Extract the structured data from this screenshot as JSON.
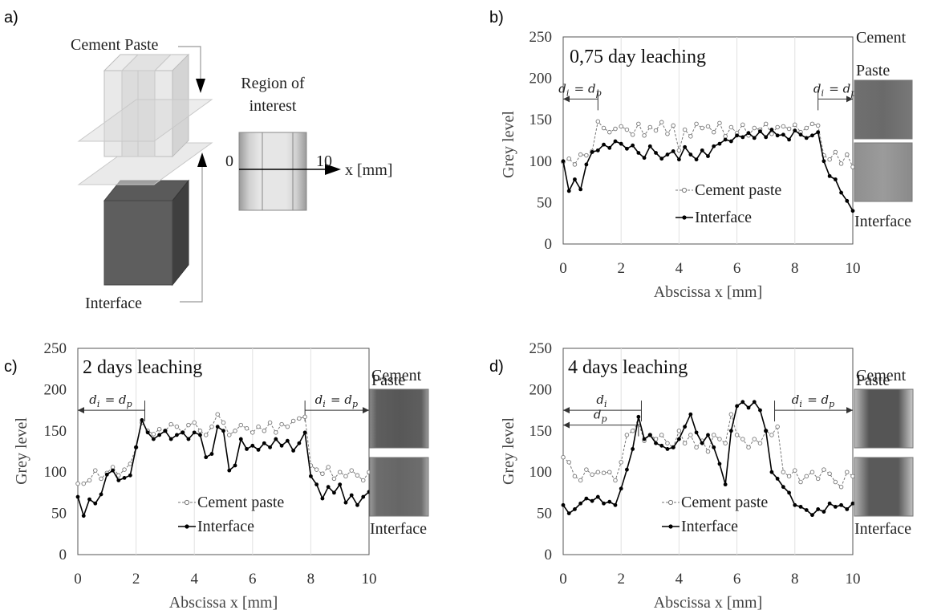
{
  "panel_a": {
    "label": "a)",
    "cement_label": "Cement Paste",
    "interface_label": "Interface",
    "roi_title_1": "Region of",
    "roi_title_2": "interest",
    "roi_zero": "0",
    "roi_ten": "10",
    "roi_axis": "x [mm]"
  },
  "chart_data": [
    {
      "type": "line",
      "panel_label": "b)",
      "title": "0,75 day leaching",
      "xlabel": "Abscissa x [mm]",
      "ylabel": "Grey level",
      "xlim": [
        0,
        10
      ],
      "ylim": [
        0,
        250
      ],
      "xticks": [
        0,
        2,
        4,
        6,
        8,
        10
      ],
      "yticks": [
        0,
        50,
        100,
        150,
        200,
        250
      ],
      "grid": true,
      "legend_position": "bottom-center",
      "sample_labels": [
        "Cement",
        "Paste",
        "Interface"
      ],
      "annotations": [
        {
          "text": "d_i = d_p",
          "from": 0,
          "to": 1.2,
          "y": 175
        },
        {
          "text": "d_i = d_p",
          "from": 8.8,
          "to": 10,
          "y": 175
        }
      ],
      "series": [
        {
          "name": "Cement paste",
          "style": "dashed-open",
          "x": [
            0,
            0.2,
            0.4,
            0.6,
            0.8,
            1.0,
            1.2,
            1.4,
            1.6,
            1.8,
            2.0,
            2.2,
            2.4,
            2.6,
            2.8,
            3.0,
            3.2,
            3.4,
            3.6,
            3.8,
            4.0,
            4.2,
            4.4,
            4.6,
            4.8,
            5.0,
            5.2,
            5.4,
            5.6,
            5.8,
            6.0,
            6.2,
            6.4,
            6.6,
            6.8,
            7.0,
            7.2,
            7.4,
            7.6,
            7.8,
            8.0,
            8.2,
            8.4,
            8.6,
            8.8,
            9.0,
            9.2,
            9.4,
            9.6,
            9.8,
            10.0
          ],
          "y": [
            99,
            103,
            96,
            108,
            107,
            112,
            148,
            140,
            135,
            139,
            142,
            138,
            132,
            145,
            131,
            141,
            137,
            147,
            133,
            143,
            113,
            138,
            130,
            145,
            140,
            142,
            135,
            146,
            130,
            141,
            134,
            144,
            131,
            140,
            138,
            145,
            133,
            141,
            142,
            139,
            144,
            135,
            140,
            145,
            143,
            107,
            102,
            111,
            97,
            108,
            93
          ]
        },
        {
          "name": "Interface",
          "style": "solid-filled",
          "x": [
            0,
            0.2,
            0.4,
            0.6,
            0.8,
            1.0,
            1.2,
            1.4,
            1.6,
            1.8,
            2.0,
            2.2,
            2.4,
            2.6,
            2.8,
            3.0,
            3.2,
            3.4,
            3.6,
            3.8,
            4.0,
            4.2,
            4.4,
            4.6,
            4.8,
            5.0,
            5.2,
            5.4,
            5.6,
            5.8,
            6.0,
            6.2,
            6.4,
            6.6,
            6.8,
            7.0,
            7.2,
            7.4,
            7.6,
            7.8,
            8.0,
            8.2,
            8.4,
            8.6,
            8.8,
            9.0,
            9.2,
            9.4,
            9.6,
            9.8,
            10.0
          ],
          "y": [
            100,
            64,
            78,
            66,
            96,
            111,
            113,
            120,
            116,
            124,
            121,
            115,
            119,
            110,
            104,
            118,
            110,
            103,
            108,
            112,
            102,
            117,
            108,
            102,
            113,
            106,
            118,
            121,
            126,
            124,
            131,
            129,
            134,
            128,
            136,
            129,
            138,
            131,
            132,
            126,
            137,
            132,
            128,
            131,
            135,
            100,
            82,
            78,
            62,
            52,
            40
          ]
        }
      ]
    },
    {
      "type": "line",
      "panel_label": "c)",
      "title": "2 days leaching",
      "xlabel": "Abscissa x [mm]",
      "ylabel": "Grey level",
      "xlim": [
        0,
        10
      ],
      "ylim": [
        0,
        250
      ],
      "xticks": [
        0,
        2,
        4,
        6,
        8,
        10
      ],
      "yticks": [
        0,
        50,
        100,
        150,
        200,
        250
      ],
      "grid": true,
      "legend_position": "bottom-center",
      "sample_labels": [
        "Cement",
        "Paste",
        "Interface"
      ],
      "annotations": [
        {
          "text": "d_i = d_p",
          "from": 0,
          "to": 2.3,
          "y": 175
        },
        {
          "text": "d_i = d_p",
          "from": 7.8,
          "to": 10,
          "y": 175
        }
      ],
      "series": [
        {
          "name": "Cement paste",
          "style": "dashed-open",
          "x": [
            0,
            0.2,
            0.4,
            0.6,
            0.8,
            1.0,
            1.2,
            1.4,
            1.6,
            1.8,
            2.0,
            2.2,
            2.4,
            2.6,
            2.8,
            3.0,
            3.2,
            3.4,
            3.6,
            3.8,
            4.0,
            4.2,
            4.4,
            4.6,
            4.8,
            5.0,
            5.2,
            5.4,
            5.6,
            5.8,
            6.0,
            6.2,
            6.4,
            6.6,
            6.8,
            7.0,
            7.2,
            7.4,
            7.6,
            7.8,
            8.0,
            8.2,
            8.4,
            8.6,
            8.8,
            9.0,
            9.2,
            9.4,
            9.6,
            9.8,
            10.0
          ],
          "y": [
            86,
            86,
            90,
            102,
            92,
            99,
            106,
            96,
            103,
            110,
            130,
            160,
            150,
            146,
            152,
            150,
            158,
            155,
            148,
            157,
            160,
            150,
            145,
            155,
            170,
            160,
            145,
            150,
            157,
            153,
            148,
            155,
            150,
            160,
            148,
            158,
            155,
            162,
            165,
            167,
            108,
            103,
            98,
            106,
            92,
            100,
            95,
            102,
            96,
            90,
            100
          ]
        },
        {
          "name": "Interface",
          "style": "solid-filled",
          "x": [
            0,
            0.2,
            0.4,
            0.6,
            0.8,
            1.0,
            1.2,
            1.4,
            1.6,
            1.8,
            2.0,
            2.2,
            2.4,
            2.6,
            2.8,
            3.0,
            3.2,
            3.4,
            3.6,
            3.8,
            4.0,
            4.2,
            4.4,
            4.6,
            4.8,
            5.0,
            5.2,
            5.4,
            5.6,
            5.8,
            6.0,
            6.2,
            6.4,
            6.6,
            6.8,
            7.0,
            7.2,
            7.4,
            7.6,
            7.8,
            8.0,
            8.2,
            8.4,
            8.6,
            8.8,
            9.0,
            9.2,
            9.4,
            9.6,
            9.8,
            10.0
          ],
          "y": [
            70,
            47,
            67,
            62,
            73,
            97,
            102,
            90,
            93,
            96,
            130,
            163,
            148,
            140,
            145,
            150,
            140,
            145,
            148,
            140,
            148,
            145,
            118,
            122,
            155,
            150,
            102,
            108,
            140,
            128,
            132,
            127,
            135,
            130,
            140,
            132,
            138,
            126,
            135,
            148,
            95,
            85,
            68,
            82,
            75,
            85,
            63,
            72,
            60,
            70,
            76
          ]
        }
      ]
    },
    {
      "type": "line",
      "panel_label": "d)",
      "title": "4 days leaching",
      "xlabel": "Abscissa x [mm]",
      "ylabel": "Grey level",
      "xlim": [
        0,
        10
      ],
      "ylim": [
        0,
        250
      ],
      "xticks": [
        0,
        2,
        4,
        6,
        8,
        10
      ],
      "yticks": [
        0,
        50,
        100,
        150,
        200,
        250
      ],
      "grid": true,
      "legend_position": "bottom-center",
      "sample_labels": [
        "Cement",
        "Paste",
        "Interface"
      ],
      "annotations": [
        {
          "text": "d_i",
          "from": 0,
          "to": 2.7,
          "y": 175
        },
        {
          "text": "d_p",
          "from": 0,
          "to": 2.6,
          "y": 157
        },
        {
          "text": "d_i = d_p",
          "from": 7.3,
          "to": 10,
          "y": 175
        }
      ],
      "series": [
        {
          "name": "Cement paste",
          "style": "dashed-open",
          "x": [
            0,
            0.2,
            0.4,
            0.6,
            0.8,
            1.0,
            1.2,
            1.4,
            1.6,
            1.8,
            2.0,
            2.2,
            2.4,
            2.6,
            2.8,
            3.0,
            3.2,
            3.4,
            3.6,
            3.8,
            4.0,
            4.2,
            4.4,
            4.6,
            4.8,
            5.0,
            5.2,
            5.4,
            5.6,
            5.8,
            6.0,
            6.2,
            6.4,
            6.6,
            6.8,
            7.0,
            7.2,
            7.4,
            7.6,
            7.8,
            8.0,
            8.2,
            8.4,
            8.6,
            8.8,
            9.0,
            9.2,
            9.4,
            9.6,
            9.8,
            10.0
          ],
          "y": [
            118,
            112,
            95,
            90,
            103,
            97,
            100,
            99,
            100,
            90,
            112,
            145,
            150,
            160,
            138,
            145,
            140,
            145,
            135,
            130,
            150,
            135,
            145,
            130,
            138,
            125,
            145,
            140,
            135,
            170,
            145,
            140,
            130,
            140,
            135,
            150,
            145,
            155,
            100,
            95,
            102,
            88,
            95,
            100,
            92,
            103,
            98,
            88,
            82,
            100,
            95
          ]
        },
        {
          "name": "Interface",
          "style": "solid-filled",
          "x": [
            0,
            0.2,
            0.4,
            0.6,
            0.8,
            1.0,
            1.2,
            1.4,
            1.6,
            1.8,
            2.0,
            2.2,
            2.4,
            2.6,
            2.8,
            3.0,
            3.2,
            3.4,
            3.6,
            3.8,
            4.0,
            4.2,
            4.4,
            4.6,
            4.8,
            5.0,
            5.2,
            5.4,
            5.6,
            5.8,
            6.0,
            6.2,
            6.4,
            6.6,
            6.8,
            7.0,
            7.2,
            7.4,
            7.6,
            7.8,
            8.0,
            8.2,
            8.4,
            8.6,
            8.8,
            9.0,
            9.2,
            9.4,
            9.6,
            9.8,
            10.0
          ],
          "y": [
            60,
            50,
            55,
            62,
            68,
            65,
            70,
            62,
            64,
            60,
            80,
            103,
            128,
            167,
            140,
            145,
            135,
            132,
            128,
            130,
            140,
            155,
            170,
            148,
            135,
            145,
            130,
            110,
            85,
            150,
            180,
            185,
            178,
            185,
            175,
            150,
            100,
            92,
            82,
            75,
            60,
            58,
            54,
            48,
            55,
            52,
            62,
            58,
            60,
            55,
            62
          ]
        }
      ]
    }
  ]
}
